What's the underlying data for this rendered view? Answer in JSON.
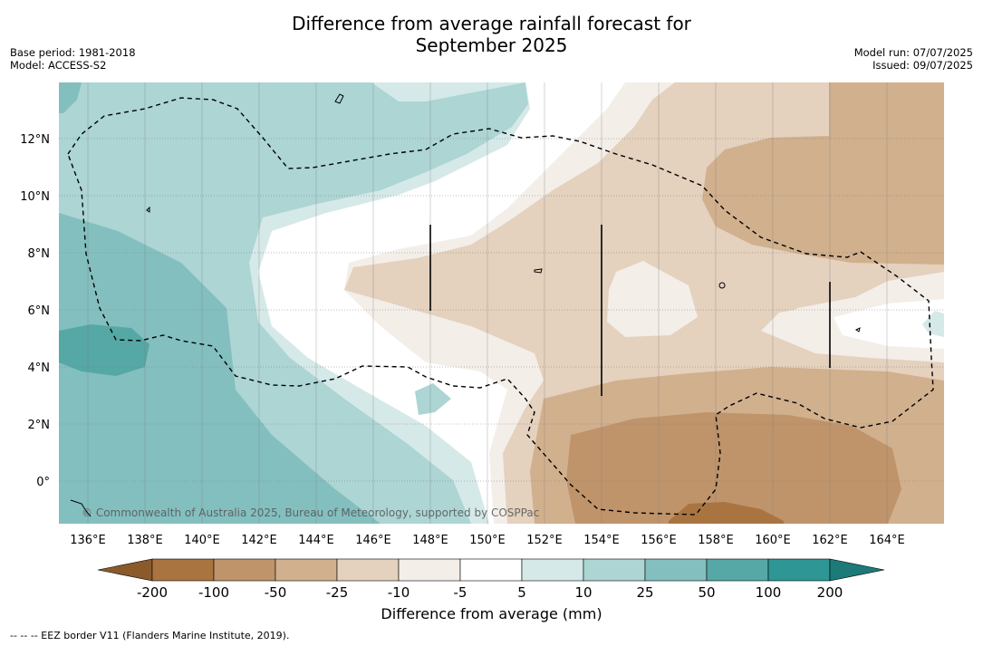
{
  "title_line1": "Difference from average rainfall forecast for",
  "title_line2": "September 2025",
  "meta": {
    "base_period": "Base period: 1981-2018",
    "model": "Model: ACCESS-S2",
    "model_run": "Model run: 07/07/2025",
    "issued": "Issued: 09/07/2025"
  },
  "map": {
    "lon_range": [
      135,
      166
    ],
    "lat_range": [
      -1.5,
      14
    ],
    "lon_ticks": [
      "136°E",
      "138°E",
      "140°E",
      "142°E",
      "144°E",
      "146°E",
      "148°E",
      "150°E",
      "152°E",
      "154°E",
      "156°E",
      "158°E",
      "160°E",
      "162°E",
      "164°E"
    ],
    "lat_ticks": [
      "12°N",
      "10°N",
      "8°N",
      "6°N",
      "4°N",
      "2°N",
      "0°"
    ],
    "copyright": "© Commonwealth of Australia 2025, Bureau of Meteorology, supported by COSPPac"
  },
  "colorbar": {
    "labels": [
      "-200",
      "-100",
      "-50",
      "-25",
      "-10",
      "-5",
      "5",
      "10",
      "25",
      "50",
      "100",
      "200"
    ],
    "colors": [
      "#8b5a2b",
      "#aa7441",
      "#bf946b",
      "#d1b08e",
      "#e4d1be",
      "#f3eee8",
      "#ffffff",
      "#d5e9e8",
      "#acd5d4",
      "#84bfbf",
      "#55a8a6",
      "#2e9694",
      "#1c7a78"
    ],
    "title": "Difference from average (mm)"
  },
  "footer": "--  --  -- EEZ border V11 (Flanders Marine Institute, 2019)."
}
